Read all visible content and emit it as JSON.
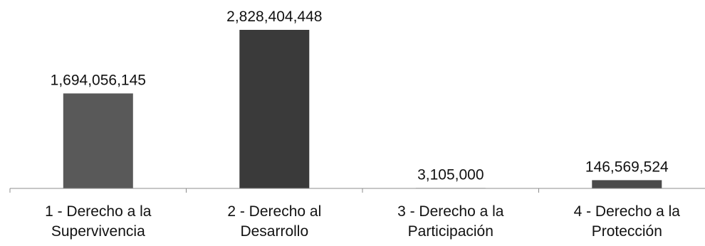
{
  "chart_data": {
    "type": "bar",
    "categories": [
      [
        "1 - Derecho a la",
        "Supervivencia"
      ],
      [
        "2 - Derecho al",
        "Desarrollo"
      ],
      [
        "3 - Derecho a la",
        "Participación"
      ],
      [
        "4 - Derecho a la",
        "Protección"
      ]
    ],
    "values": [
      1694056145,
      2828404448,
      3105000,
      146569524
    ],
    "value_labels": [
      "1,694,056,145",
      "2,828,404,448",
      "3,105,000",
      "146,569,524"
    ],
    "bar_colors": [
      "#595959",
      "#3a3a3a",
      "#595959",
      "#4a4a4a"
    ],
    "ylim": [
      0,
      2828404448
    ],
    "grid": false,
    "legend": "none",
    "title": "",
    "xlabel": "",
    "ylabel": ""
  }
}
